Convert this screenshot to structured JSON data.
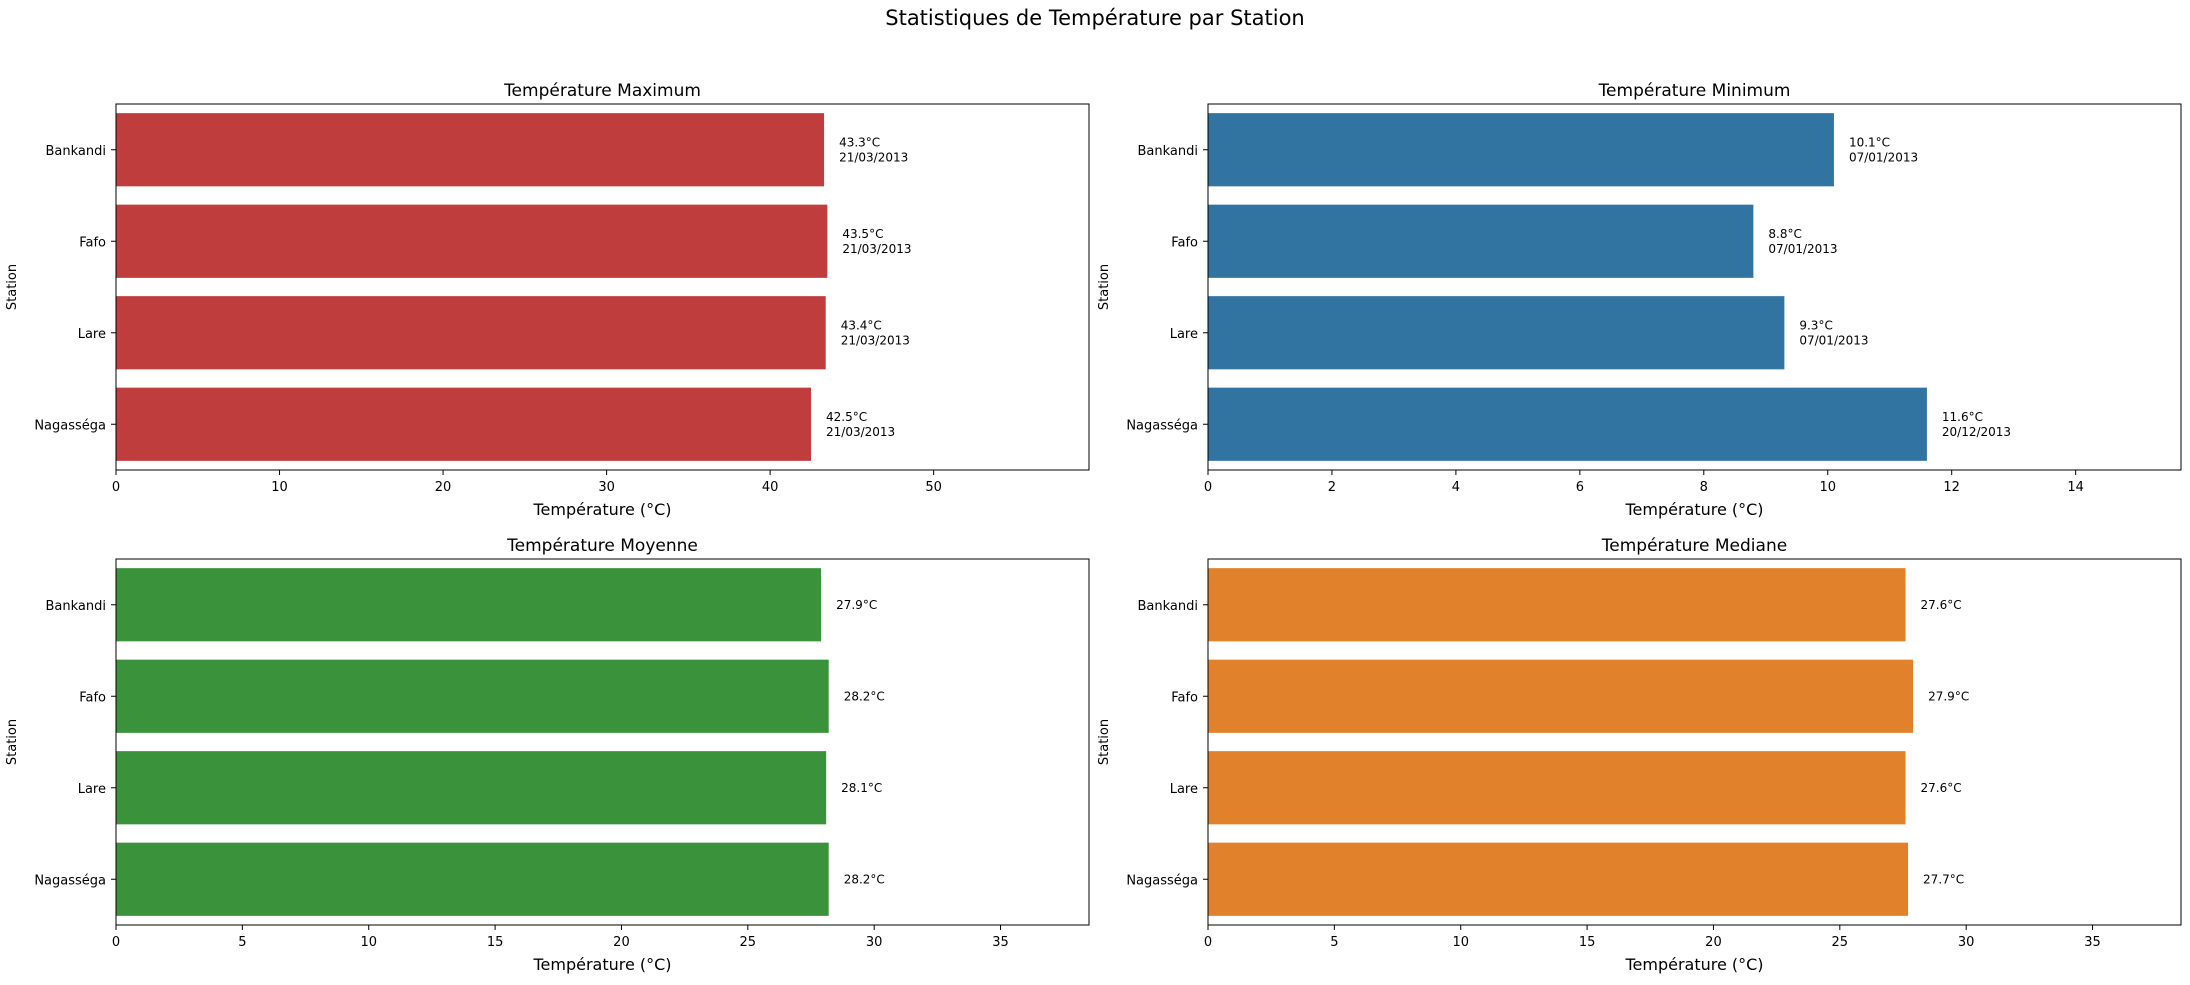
{
  "suptitle": "Statistiques de Température par Station",
  "chart_data": [
    {
      "type": "bar",
      "orientation": "horizontal",
      "title": "Température Maximum",
      "xlabel": "Température (°C)",
      "ylabel": "Station",
      "categories": [
        "Bankandi",
        "Fafo",
        "Lare",
        "Nagasséga"
      ],
      "values": [
        43.3,
        43.5,
        43.4,
        42.5
      ],
      "bar_labels": [
        "43.3°C\n21/03/2013",
        "43.5°C\n21/03/2013",
        "43.4°C\n21/03/2013",
        "42.5°C\n21/03/2013"
      ],
      "xlim": [
        0,
        59.5
      ],
      "xticks": [
        0,
        10,
        20,
        30,
        40,
        50
      ],
      "color": "#c03d3e",
      "grid": false
    },
    {
      "type": "bar",
      "orientation": "horizontal",
      "title": "Température Minimum",
      "xlabel": "Température (°C)",
      "ylabel": "Station",
      "categories": [
        "Bankandi",
        "Fafo",
        "Lare",
        "Nagasséga"
      ],
      "values": [
        10.1,
        8.8,
        9.3,
        11.6
      ],
      "bar_labels": [
        "10.1°C\n07/01/2013",
        "8.8°C\n07/01/2013",
        "9.3°C\n07/01/2013",
        "11.6°C\n20/12/2013"
      ],
      "xlim": [
        0,
        15.7
      ],
      "xticks": [
        0,
        2,
        4,
        6,
        8,
        10,
        12,
        14
      ],
      "color": "#3174a1",
      "grid": false
    },
    {
      "type": "bar",
      "orientation": "horizontal",
      "title": "Température Moyenne",
      "xlabel": "Température (°C)",
      "ylabel": "Station",
      "categories": [
        "Bankandi",
        "Fafo",
        "Lare",
        "Nagasséga"
      ],
      "values": [
        27.9,
        28.2,
        28.1,
        28.2
      ],
      "bar_labels": [
        "27.9°C",
        "28.2°C",
        "28.1°C",
        "28.2°C"
      ],
      "xlim": [
        0,
        38.5
      ],
      "xticks": [
        0,
        5,
        10,
        15,
        20,
        25,
        30,
        35
      ],
      "color": "#3a923a",
      "grid": false
    },
    {
      "type": "bar",
      "orientation": "horizontal",
      "title": "Température Mediane",
      "xlabel": "Température (°C)",
      "ylabel": "Station",
      "categories": [
        "Bankandi",
        "Fafo",
        "Lare",
        "Nagasséga"
      ],
      "values": [
        27.6,
        27.9,
        27.6,
        27.7
      ],
      "bar_labels": [
        "27.6°C",
        "27.9°C",
        "27.6°C",
        "27.7°C"
      ],
      "xlim": [
        0,
        38.5
      ],
      "xticks": [
        0,
        5,
        10,
        15,
        20,
        25,
        30,
        35
      ],
      "color": "#e1812c",
      "grid": false
    }
  ]
}
